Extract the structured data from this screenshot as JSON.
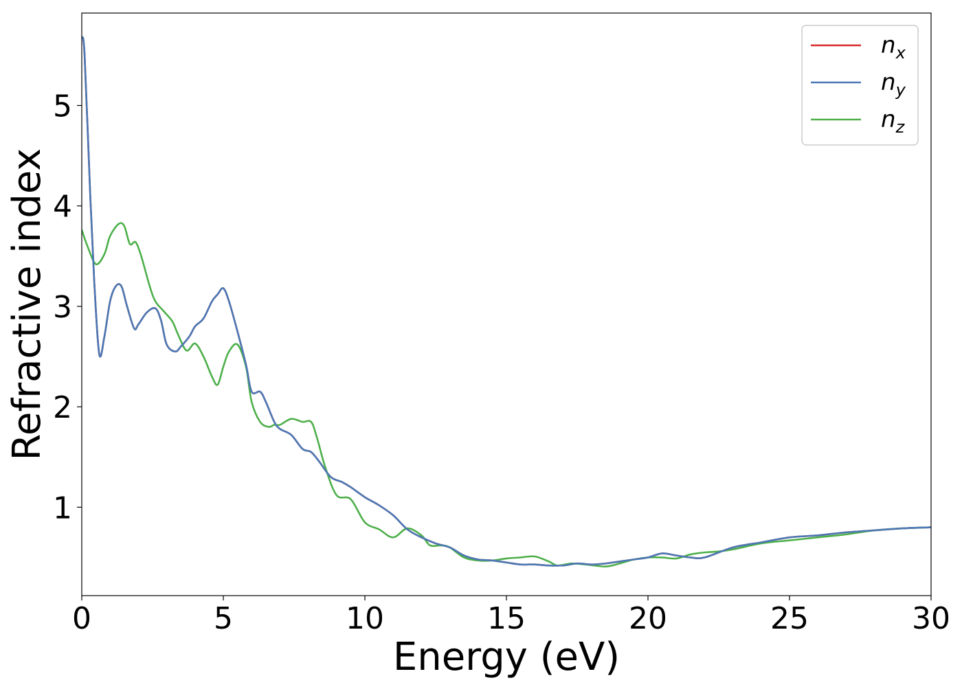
{
  "chart_data": {
    "type": "line",
    "title": "",
    "xlabel": "Energy (eV)",
    "ylabel": "Refractive index",
    "xlim": [
      0,
      30
    ],
    "ylim": [
      0.12,
      5.92
    ],
    "xticks": [
      0,
      5,
      10,
      15,
      20,
      25,
      30
    ],
    "xtick_labels": [
      "0",
      "5",
      "10",
      "15",
      "20",
      "25",
      "30"
    ],
    "yticks": [
      1,
      2,
      3,
      4,
      5
    ],
    "ytick_labels": [
      "1",
      "2",
      "3",
      "4",
      "5"
    ],
    "grid": false,
    "legend_position": "top-right",
    "series": [
      {
        "name": "n_x",
        "legend_base": "n",
        "legend_sub": "x",
        "color": "#d62728",
        "x": [
          0,
          0.1,
          0.3,
          0.45,
          0.62,
          0.8,
          1.0,
          1.2,
          1.4,
          1.6,
          1.85,
          2.0,
          2.3,
          2.6,
          2.8,
          3.0,
          3.3,
          3.5,
          3.8,
          4.0,
          4.3,
          4.6,
          4.8,
          5.0,
          5.2,
          5.5,
          5.8,
          6.0,
          6.3,
          6.5,
          6.8,
          7.0,
          7.4,
          7.8,
          8.1,
          8.4,
          8.8,
          9.2,
          9.5,
          10.0,
          10.5,
          11.0,
          11.5,
          12.0,
          12.5,
          13.0,
          13.5,
          14.0,
          14.5,
          15.0,
          15.5,
          16.0,
          16.5,
          17.0,
          17.5,
          18.0,
          18.5,
          19.0,
          19.5,
          20.0,
          20.5,
          21.0,
          21.5,
          22.0,
          23.0,
          24.0,
          25.0,
          26.0,
          27.0,
          28.0,
          29.0,
          30.0
        ],
        "y": [
          5.68,
          5.5,
          4.1,
          3.2,
          2.52,
          2.7,
          3.05,
          3.2,
          3.2,
          3.0,
          2.78,
          2.82,
          2.94,
          2.98,
          2.86,
          2.62,
          2.55,
          2.6,
          2.7,
          2.8,
          2.88,
          3.05,
          3.12,
          3.18,
          3.05,
          2.75,
          2.42,
          2.15,
          2.15,
          2.05,
          1.85,
          1.78,
          1.72,
          1.58,
          1.55,
          1.45,
          1.3,
          1.25,
          1.2,
          1.1,
          1.02,
          0.92,
          0.78,
          0.7,
          0.64,
          0.6,
          0.52,
          0.48,
          0.47,
          0.45,
          0.43,
          0.43,
          0.42,
          0.42,
          0.44,
          0.43,
          0.44,
          0.46,
          0.48,
          0.5,
          0.54,
          0.52,
          0.5,
          0.5,
          0.6,
          0.65,
          0.7,
          0.72,
          0.75,
          0.77,
          0.79,
          0.8
        ]
      },
      {
        "name": "n_y",
        "legend_base": "n",
        "legend_sub": "y",
        "color": "#4a78b5",
        "x": [
          0,
          0.1,
          0.3,
          0.45,
          0.62,
          0.8,
          1.0,
          1.2,
          1.4,
          1.6,
          1.85,
          2.0,
          2.3,
          2.6,
          2.8,
          3.0,
          3.3,
          3.5,
          3.8,
          4.0,
          4.3,
          4.6,
          4.8,
          5.0,
          5.2,
          5.5,
          5.8,
          6.0,
          6.3,
          6.5,
          6.8,
          7.0,
          7.4,
          7.8,
          8.1,
          8.4,
          8.8,
          9.2,
          9.5,
          10.0,
          10.5,
          11.0,
          11.5,
          12.0,
          12.5,
          13.0,
          13.5,
          14.0,
          14.5,
          15.0,
          15.5,
          16.0,
          16.5,
          17.0,
          17.5,
          18.0,
          18.5,
          19.0,
          19.5,
          20.0,
          20.5,
          21.0,
          21.5,
          22.0,
          23.0,
          24.0,
          25.0,
          26.0,
          27.0,
          28.0,
          29.0,
          30.0
        ],
        "y": [
          5.68,
          5.5,
          4.1,
          3.2,
          2.52,
          2.7,
          3.05,
          3.2,
          3.2,
          3.0,
          2.78,
          2.82,
          2.94,
          2.98,
          2.86,
          2.62,
          2.55,
          2.6,
          2.7,
          2.8,
          2.88,
          3.05,
          3.12,
          3.18,
          3.05,
          2.75,
          2.42,
          2.15,
          2.15,
          2.05,
          1.85,
          1.78,
          1.72,
          1.58,
          1.55,
          1.45,
          1.3,
          1.25,
          1.2,
          1.1,
          1.02,
          0.92,
          0.78,
          0.7,
          0.64,
          0.6,
          0.52,
          0.48,
          0.47,
          0.45,
          0.43,
          0.43,
          0.42,
          0.42,
          0.44,
          0.43,
          0.44,
          0.46,
          0.48,
          0.5,
          0.54,
          0.52,
          0.5,
          0.5,
          0.6,
          0.65,
          0.7,
          0.72,
          0.75,
          0.77,
          0.79,
          0.8
        ]
      },
      {
        "name": "n_z",
        "legend_base": "n",
        "legend_sub": "z",
        "color": "#4daf4a",
        "x": [
          0,
          0.2,
          0.5,
          0.8,
          1.0,
          1.3,
          1.5,
          1.7,
          1.9,
          2.1,
          2.4,
          2.6,
          2.9,
          3.2,
          3.4,
          3.7,
          4.0,
          4.3,
          4.6,
          4.8,
          5.0,
          5.2,
          5.5,
          5.8,
          6.0,
          6.3,
          6.6,
          6.8,
          7.0,
          7.4,
          7.8,
          8.1,
          8.3,
          8.6,
          9.0,
          9.5,
          10.0,
          10.5,
          11.0,
          11.5,
          12.0,
          12.3,
          12.7,
          13.0,
          13.5,
          14.0,
          14.5,
          15.0,
          15.5,
          16.0,
          16.5,
          16.8,
          17.3,
          17.8,
          18.5,
          19.0,
          19.5,
          20.0,
          20.5,
          21.0,
          21.5,
          22.0,
          22.5,
          23.0,
          24.0,
          25.0,
          26.0,
          27.0,
          28.0,
          29.0,
          30.0
        ],
        "y": [
          3.76,
          3.6,
          3.42,
          3.52,
          3.7,
          3.82,
          3.8,
          3.62,
          3.64,
          3.5,
          3.2,
          3.05,
          2.95,
          2.85,
          2.72,
          2.56,
          2.63,
          2.5,
          2.3,
          2.22,
          2.4,
          2.55,
          2.62,
          2.4,
          2.05,
          1.85,
          1.8,
          1.82,
          1.82,
          1.88,
          1.85,
          1.85,
          1.7,
          1.4,
          1.12,
          1.08,
          0.85,
          0.78,
          0.7,
          0.79,
          0.72,
          0.62,
          0.62,
          0.6,
          0.5,
          0.47,
          0.47,
          0.49,
          0.5,
          0.51,
          0.46,
          0.42,
          0.44,
          0.43,
          0.41,
          0.44,
          0.48,
          0.5,
          0.5,
          0.49,
          0.53,
          0.55,
          0.56,
          0.58,
          0.64,
          0.67,
          0.7,
          0.73,
          0.77,
          0.79,
          0.8
        ]
      }
    ]
  }
}
